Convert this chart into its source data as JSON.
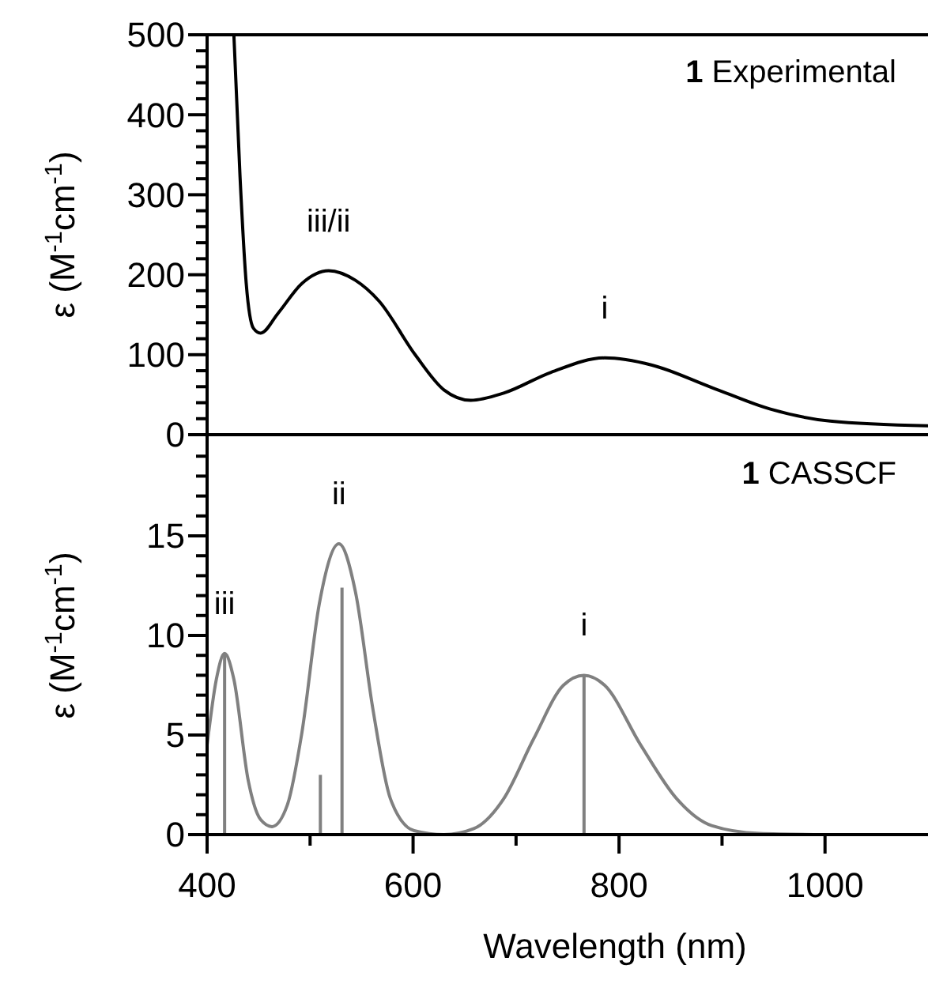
{
  "chart_data": [
    {
      "type": "line",
      "title": "1 Experimental",
      "ylabel": "ε (M$^{-1}$cm$^{-1}$)",
      "xlim": [
        400,
        1100
      ],
      "ylim": [
        0,
        500
      ],
      "tick_labels": "y",
      "yticks": [
        0,
        {
          "value": 20,
          "label": null
        },
        {
          "value": 40,
          "label": null
        },
        {
          "value": 60,
          "label": null
        },
        {
          "value": 80,
          "label": null
        },
        100,
        {
          "value": 120,
          "label": null
        },
        {
          "value": 140,
          "label": null
        },
        {
          "value": 160,
          "label": null
        },
        {
          "value": 180,
          "label": null
        },
        200,
        {
          "value": 220,
          "label": null
        },
        {
          "value": 240,
          "label": null
        },
        {
          "value": 260,
          "label": null
        },
        {
          "value": 280,
          "label": null
        },
        300,
        {
          "value": 320,
          "label": null
        },
        {
          "value": 340,
          "label": null
        },
        {
          "value": 360,
          "label": null
        },
        {
          "value": 380,
          "label": null
        },
        400,
        {
          "value": 420,
          "label": null
        },
        {
          "value": 440,
          "label": null
        },
        {
          "value": 460,
          "label": null
        },
        {
          "value": 480,
          "label": null
        },
        500
      ],
      "series": [
        {
          "color": "#000000",
          "x": [
            426,
            432,
            438,
            445,
            452,
            469,
            492,
            518,
            544,
            567,
            602,
            630,
            656,
            688,
            734,
            786,
            832,
            890,
            947,
            1005,
            1100
          ],
          "values": [
            500,
            322,
            189,
            133,
            127,
            152,
            189,
            205,
            193,
            167,
            100,
            56,
            43,
            52,
            78,
            96,
            87,
            59,
            32,
            17,
            11
          ]
        }
      ],
      "annotations": [
        {
          "text": "iii/ii",
          "x": 518,
          "y": 205
        },
        {
          "text": "i",
          "x": 786,
          "y": 96
        }
      ]
    },
    {
      "type": "line",
      "title": "1 CASSCF",
      "xlabel": "Wavelength (nm)",
      "ylabel": "ε (M$^{-1}$cm$^{-1}$)",
      "xlim": [
        400,
        1100
      ],
      "ylim": [
        0,
        20
      ],
      "xticks": [
        400,
        {
          "value": 500,
          "label": null
        },
        600,
        {
          "value": 700,
          "label": null
        },
        800,
        {
          "value": 900,
          "label": null
        },
        1000
      ],
      "yticks": [
        0,
        {
          "value": 1,
          "label": null
        },
        {
          "value": 2,
          "label": null
        },
        {
          "value": 3,
          "label": null
        },
        {
          "value": 4,
          "label": null
        },
        5,
        {
          "value": 6,
          "label": null
        },
        {
          "value": 7,
          "label": null
        },
        {
          "value": 8,
          "label": null
        },
        {
          "value": 9,
          "label": null
        },
        10,
        {
          "value": 11,
          "label": null
        },
        {
          "value": 12,
          "label": null
        },
        {
          "value": 13,
          "label": null
        },
        {
          "value": 14,
          "label": null
        },
        15,
        {
          "value": 16,
          "label": null
        },
        {
          "value": 17,
          "label": null
        },
        {
          "value": 18,
          "label": null
        },
        {
          "value": 19,
          "label": null
        }
      ],
      "series": [
        {
          "color": "#808080",
          "x": [
            400,
            409,
            417,
            426,
            440,
            452,
            463,
            478,
            492,
            509,
            528,
            544,
            561,
            578,
            601,
            630,
            659,
            688,
            717,
            746,
            766,
            786,
            821,
            856,
            890,
            936,
            1000
          ],
          "values": [
            4.5,
            7.8,
            9.1,
            7.8,
            2.7,
            0.75,
            0.4,
            1.5,
            5.1,
            11.6,
            14.6,
            12.2,
            6.3,
            1.8,
            0.2,
            0,
            0.3,
            1.8,
            4.8,
            7.5,
            8.0,
            7.5,
            4.5,
            1.8,
            0.45,
            0.06,
            0
          ]
        },
        {
          "type": "bar",
          "color": "#808080",
          "x": [
            417,
            510,
            531,
            766
          ],
          "values": [
            9.1,
            3.0,
            12.4,
            8.0
          ]
        }
      ],
      "annotations": [
        {
          "text": "iii",
          "x": 417,
          "y": 9.1
        },
        {
          "text": "ii",
          "x": 528,
          "y": 14.6
        },
        {
          "text": "i",
          "x": 766,
          "y": 8.0
        }
      ]
    }
  ]
}
